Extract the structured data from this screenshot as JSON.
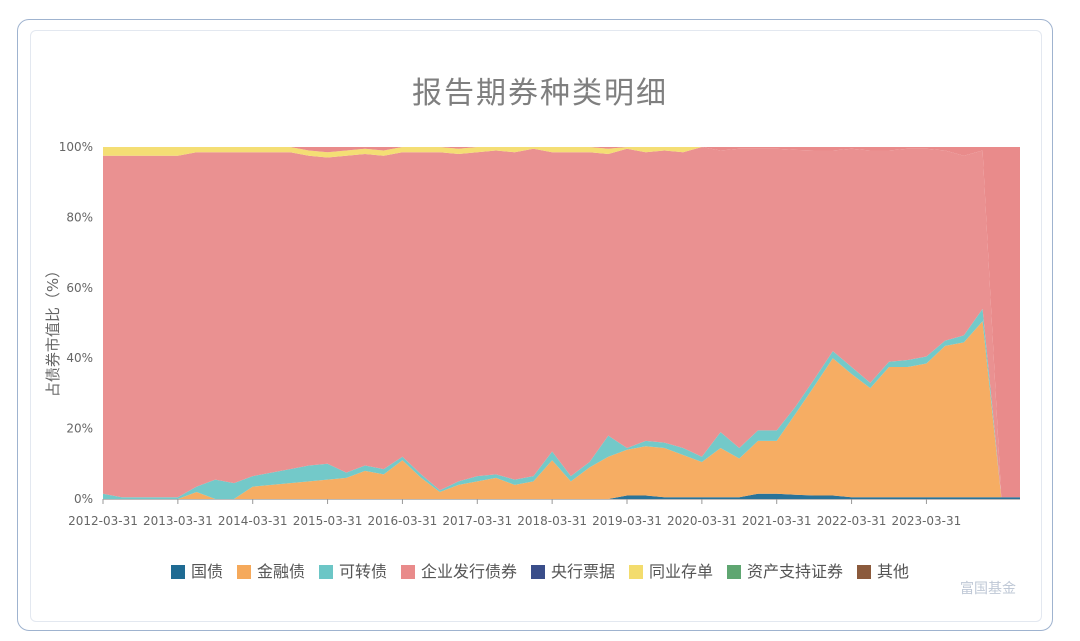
{
  "chart_data": {
    "type": "area",
    "stacked": true,
    "normalized": true,
    "title": "报告期券种类明细",
    "ylabel": "占债券市值比（%）",
    "xlabel": "",
    "ylim": [
      0,
      100
    ],
    "yticks": [
      "0%",
      "20%",
      "40%",
      "60%",
      "80%",
      "100%"
    ],
    "x_tick_labels": [
      "2012-03-31",
      "2013-03-31",
      "2014-03-31",
      "2015-03-31",
      "2016-03-31",
      "2017-03-31",
      "2018-03-31",
      "2019-03-31",
      "2020-03-31",
      "2021-03-31",
      "2022-03-31",
      "2023-03-31"
    ],
    "legend_position": "bottom",
    "series": [
      {
        "name": "国债",
        "color": "#1f6b93",
        "values": [
          0,
          0,
          0,
          0,
          0,
          0,
          0,
          0,
          0,
          0,
          0,
          0,
          0,
          0,
          0,
          0,
          0,
          0,
          0,
          0,
          0,
          0,
          0,
          0,
          0,
          0,
          0,
          0,
          1,
          1,
          0.5,
          0.5,
          0.5,
          0.5,
          0.5,
          1.5,
          1.5,
          1.2,
          1,
          1,
          0.5,
          0.5,
          0.5,
          0.5,
          0.5,
          0.5,
          0.5,
          0.5,
          0.5,
          0.5
        ]
      },
      {
        "name": "金融债",
        "color": "#f5a95b",
        "values": [
          0,
          0,
          0,
          0,
          0,
          2,
          0,
          0,
          3.5,
          4,
          4.5,
          5,
          5.5,
          6,
          8,
          7,
          11,
          6,
          2,
          4,
          5,
          6,
          4,
          5,
          11,
          5,
          9,
          12,
          13,
          14,
          14,
          12,
          10,
          14,
          11,
          15,
          15,
          23,
          31,
          39,
          35,
          31,
          37,
          37,
          38,
          43,
          44,
          50,
          0,
          0
        ]
      },
      {
        "name": "可转债",
        "color": "#6cc6c6",
        "values": [
          1.5,
          0.5,
          0.5,
          0.5,
          0.5,
          1.5,
          5.5,
          4.5,
          3,
          3.5,
          4,
          4.5,
          4.5,
          1.5,
          1.5,
          1.5,
          1,
          1,
          0.5,
          1,
          1.5,
          1,
          1.5,
          1.5,
          2.5,
          1.5,
          1.5,
          6,
          0.5,
          1.5,
          1.5,
          2,
          1.5,
          4.5,
          3,
          3,
          3,
          2,
          2,
          2,
          2,
          1.5,
          1.5,
          2,
          2,
          1.5,
          2,
          3.5,
          0,
          0
        ]
      },
      {
        "name": "企业发行债券",
        "color": "#e98b8b",
        "values": [
          96,
          97,
          97,
          97,
          97,
          95,
          93,
          94,
          92,
          91,
          90,
          88,
          87,
          90,
          88.5,
          89,
          86.5,
          91.5,
          96,
          93,
          92,
          92,
          93,
          93,
          85,
          92,
          88,
          80,
          85,
          82,
          83,
          84,
          88,
          80,
          85,
          80,
          80,
          73,
          65,
          57,
          62,
          66,
          60,
          60,
          59,
          54,
          51,
          45,
          0,
          0
        ]
      },
      {
        "name": "央行票据",
        "color": "#3a4e8a",
        "values": [
          0,
          0,
          0,
          0,
          0,
          0,
          0,
          0,
          0,
          0,
          0,
          0,
          0,
          0,
          0,
          0,
          0,
          0,
          0,
          0,
          0,
          0,
          0,
          0,
          0,
          0,
          0,
          0,
          0,
          0,
          0,
          0,
          0,
          0,
          0,
          0,
          0,
          0,
          0,
          0,
          0,
          0,
          0,
          0,
          0,
          0,
          0,
          0,
          0,
          0
        ]
      },
      {
        "name": "同业存单",
        "color": "#f3dc6d",
        "values": [
          2.5,
          2.5,
          2.5,
          2.5,
          2.5,
          1.5,
          1.5,
          1.5,
          1.5,
          1.5,
          1.5,
          1.5,
          1.5,
          1.5,
          1.5,
          1.5,
          1.5,
          1.5,
          1.5,
          1.5,
          1.5,
          1.5,
          1.5,
          1.5,
          1.5,
          1.5,
          1.5,
          1.5,
          1.5,
          1.5,
          1.5,
          1.5,
          0,
          0,
          0,
          0,
          0,
          0,
          0,
          0,
          0,
          0,
          0,
          0,
          0,
          0,
          0,
          0,
          0,
          0
        ]
      },
      {
        "name": "资产支持证券",
        "color": "#5fa671",
        "values": [
          0,
          0,
          0,
          0,
          0,
          0,
          0,
          0,
          0,
          0,
          0,
          0,
          0,
          0,
          0,
          0,
          0,
          0,
          0,
          0,
          0,
          0,
          0,
          0,
          0,
          0,
          0,
          0,
          0,
          0,
          0,
          0,
          0,
          0,
          0,
          0,
          0,
          0,
          0,
          0,
          0,
          0,
          0,
          0,
          0,
          0,
          0,
          0,
          0,
          0
        ]
      },
      {
        "name": "其他",
        "color": "#8b5a3c",
        "values": [
          0,
          0,
          0,
          0,
          0,
          0,
          0,
          0,
          0,
          0,
          0,
          0,
          0,
          0,
          0,
          0,
          0,
          0,
          0,
          0,
          0,
          0,
          0,
          0,
          0,
          0,
          0,
          0,
          0,
          0,
          0,
          0,
          0,
          0,
          0,
          0,
          0,
          0,
          0,
          0,
          0,
          0,
          0,
          0,
          0,
          0,
          0,
          0,
          0,
          0
        ]
      }
    ]
  },
  "watermark": "富国基金"
}
